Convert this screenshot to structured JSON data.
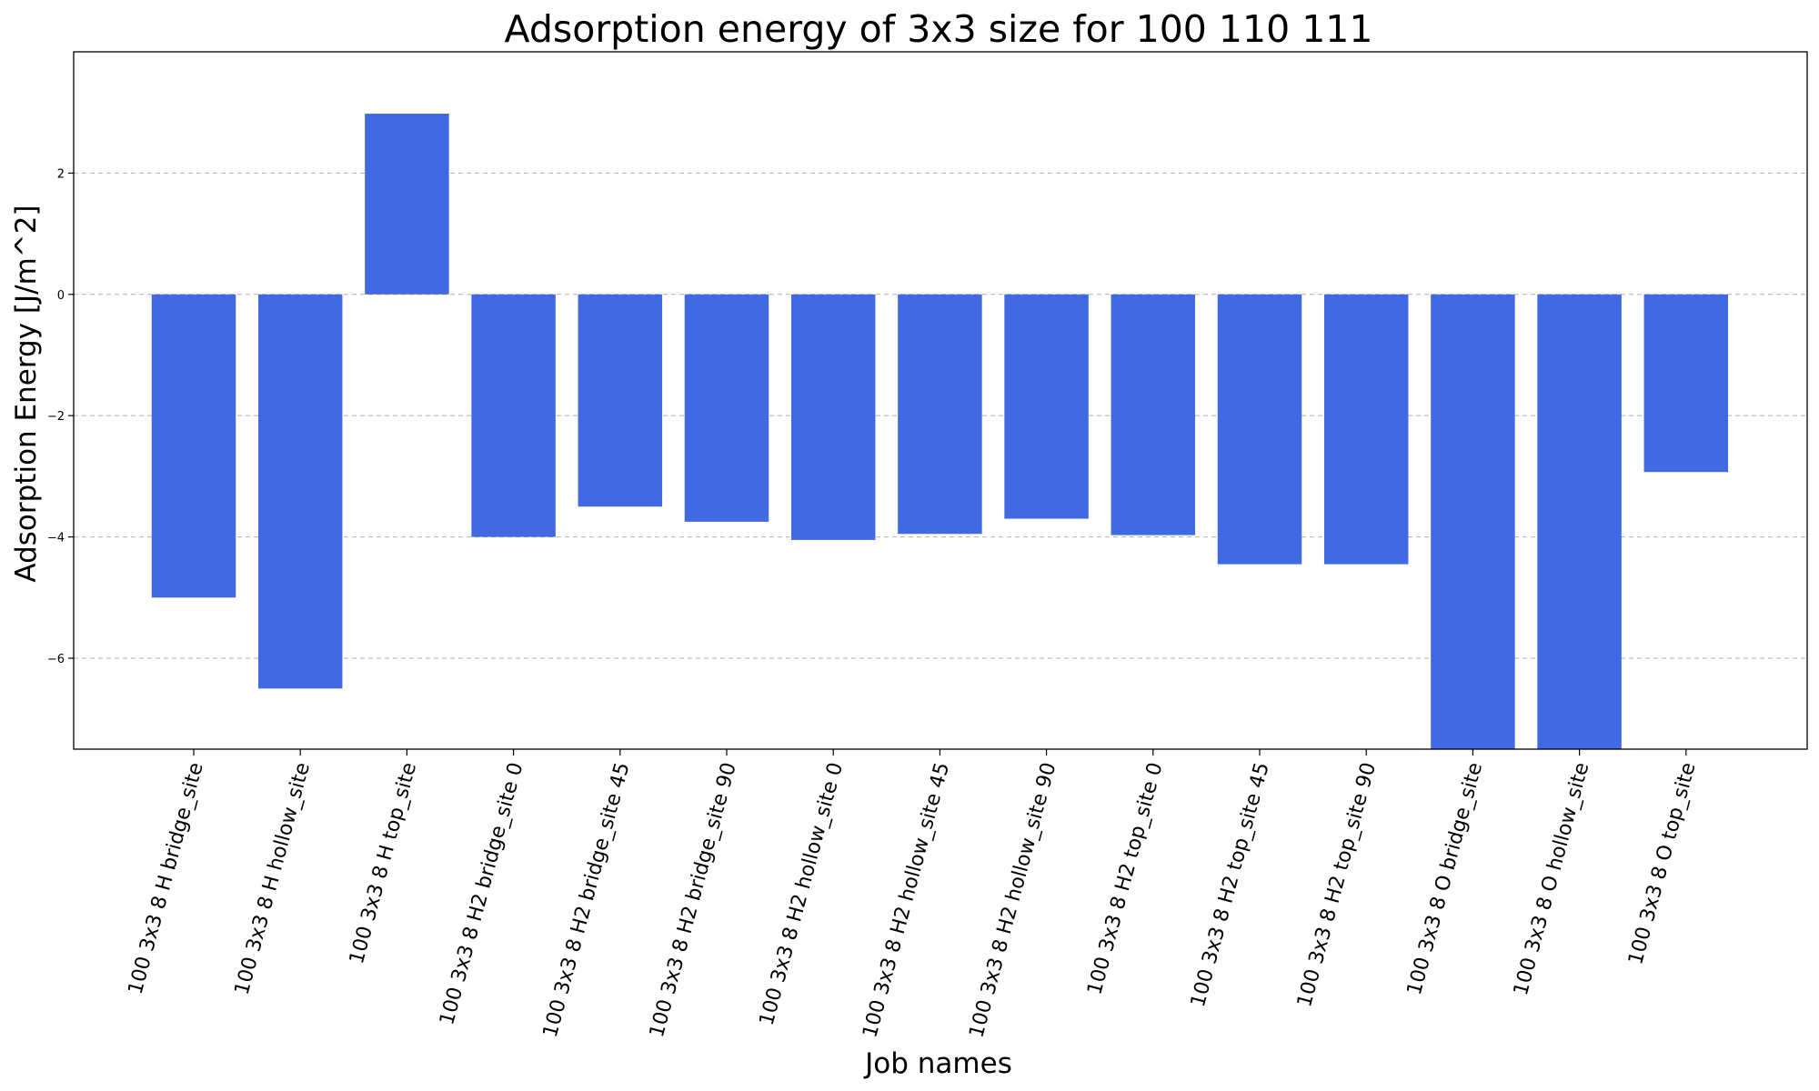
{
  "chart_data": {
    "type": "bar",
    "title": "Adsorption energy of 3x3 size for 100 110 111",
    "xlabel": "Job names",
    "ylabel": "Adsorption Energy [J/m^2]",
    "ylim": [
      -7.5,
      4.0
    ],
    "yticks": [
      2,
      0,
      -2,
      -4,
      -6
    ],
    "ytick_labels": [
      "2",
      "0",
      "−2",
      "−4",
      "−6"
    ],
    "grid": "y-dashed",
    "bar_color": "#4169E1",
    "categories": [
      "100 3x3 8 H bridge_site",
      "100 3x3 8 H hollow_site",
      "100 3x3 8 H top_site",
      "100 3x3 8 H2 bridge_site 0",
      "100 3x3 8 H2 bridge_site 45",
      "100 3x3 8 H2 bridge_site 90",
      "100 3x3 8 H2 hollow_site 0",
      "100 3x3 8 H2 hollow_site 45",
      "100 3x3 8 H2 hollow_site 90",
      "100 3x3 8 H2 top_site 0",
      "100 3x3 8 H2 top_site 45",
      "100 3x3 8 H2 top_site 90",
      "100 3x3 8 O bridge_site",
      "100 3x3 8 O hollow_site",
      "100 3x3 8 O top_site"
    ],
    "values": [
      -5.0,
      -6.5,
      2.98,
      -4.0,
      -3.5,
      -3.75,
      -4.05,
      -3.95,
      -3.7,
      -3.97,
      -4.45,
      -4.45,
      -7.6,
      -7.6,
      -2.93
    ]
  }
}
